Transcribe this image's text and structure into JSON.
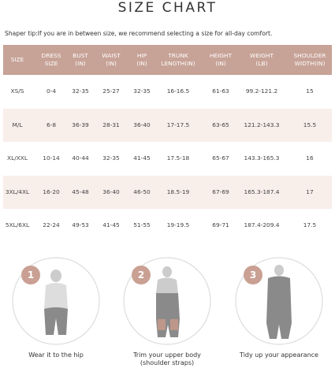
{
  "title": "SIZE CHART",
  "tip": "Shaper tip:If you are in between size, we recommend selecting a size for all-day comfort.",
  "table": {
    "header": [
      "SIZE",
      "DRESS\nSIZE",
      "BUST\n(IN)",
      "WAIST\n(IN)",
      "HIP\n(IN)",
      "TRUNK\nLENGTH(IN)",
      "HEIGHT\n(IN)",
      "WEIGHT\n(LB)",
      "SHOULDER\nWIDTH(IN)"
    ],
    "rows": [
      [
        "XS/S",
        "0-4",
        "32-35",
        "25-27",
        "32-35",
        "16-16.5",
        "61-63",
        "99.2-121.2",
        "15"
      ],
      [
        "M/L",
        "6-8",
        "36-39",
        "28-31",
        "36-40",
        "17-17.5",
        "63-65",
        "121.2-143.3",
        "15.5"
      ],
      [
        "XL/XXL",
        "10-14",
        "40-44",
        "32-35",
        "41-45",
        "17.5-18",
        "65-67",
        "143.3-165.3",
        "16"
      ],
      [
        "3XL/4XL",
        "16-20",
        "45-48",
        "36-40",
        "46-50",
        "18.5-19",
        "67-69",
        "165.3-187.4",
        "17"
      ],
      [
        "5XL/6XL",
        "22-24",
        "49-53",
        "41-45",
        "51-55",
        "19-19.5",
        "69-71",
        "187.4-209.4",
        "17.5"
      ]
    ]
  },
  "steps": [
    {
      "number": "1",
      "caption": "Wear it to the hip"
    },
    {
      "number": "2",
      "caption": "Trim your upper body\n(shoulder straps)"
    },
    {
      "number": "3",
      "caption": "Tidy up your appearance"
    }
  ]
}
